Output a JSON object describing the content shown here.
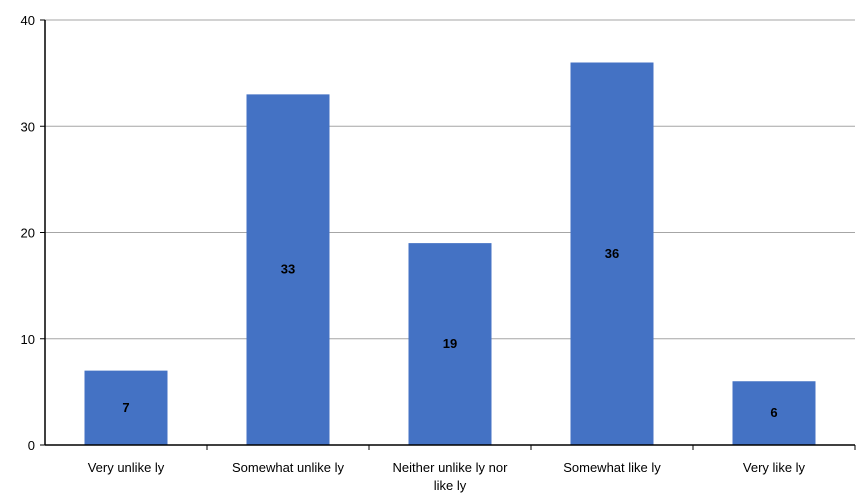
{
  "chart_data": {
    "type": "bar",
    "categories": [
      "Very unlikely",
      "Somewhat unlikely",
      "Neither unlikely nor likely",
      "Somewhat likely",
      "Very likely"
    ],
    "category_label_lines": [
      [
        "Very unlike ly"
      ],
      [
        "Somewhat unlike ly"
      ],
      [
        "Neither unlike ly nor",
        "like ly"
      ],
      [
        "Somewhat like ly"
      ],
      [
        "Very like ly"
      ]
    ],
    "values": [
      7,
      33,
      19,
      36,
      6
    ],
    "data_labels": [
      "7",
      "33",
      "19",
      "36",
      "6"
    ],
    "title": "",
    "xlabel": "",
    "ylabel": "",
    "ylim": [
      0,
      40
    ],
    "yticks": [
      0,
      10,
      20,
      30,
      40
    ],
    "ytick_labels": [
      "0",
      "10",
      "20",
      "30",
      "40"
    ],
    "grid": true,
    "legend": "none",
    "bar_color": "#4472C4",
    "grid_color": "#A6A6A6",
    "axis_color": "#000000"
  }
}
